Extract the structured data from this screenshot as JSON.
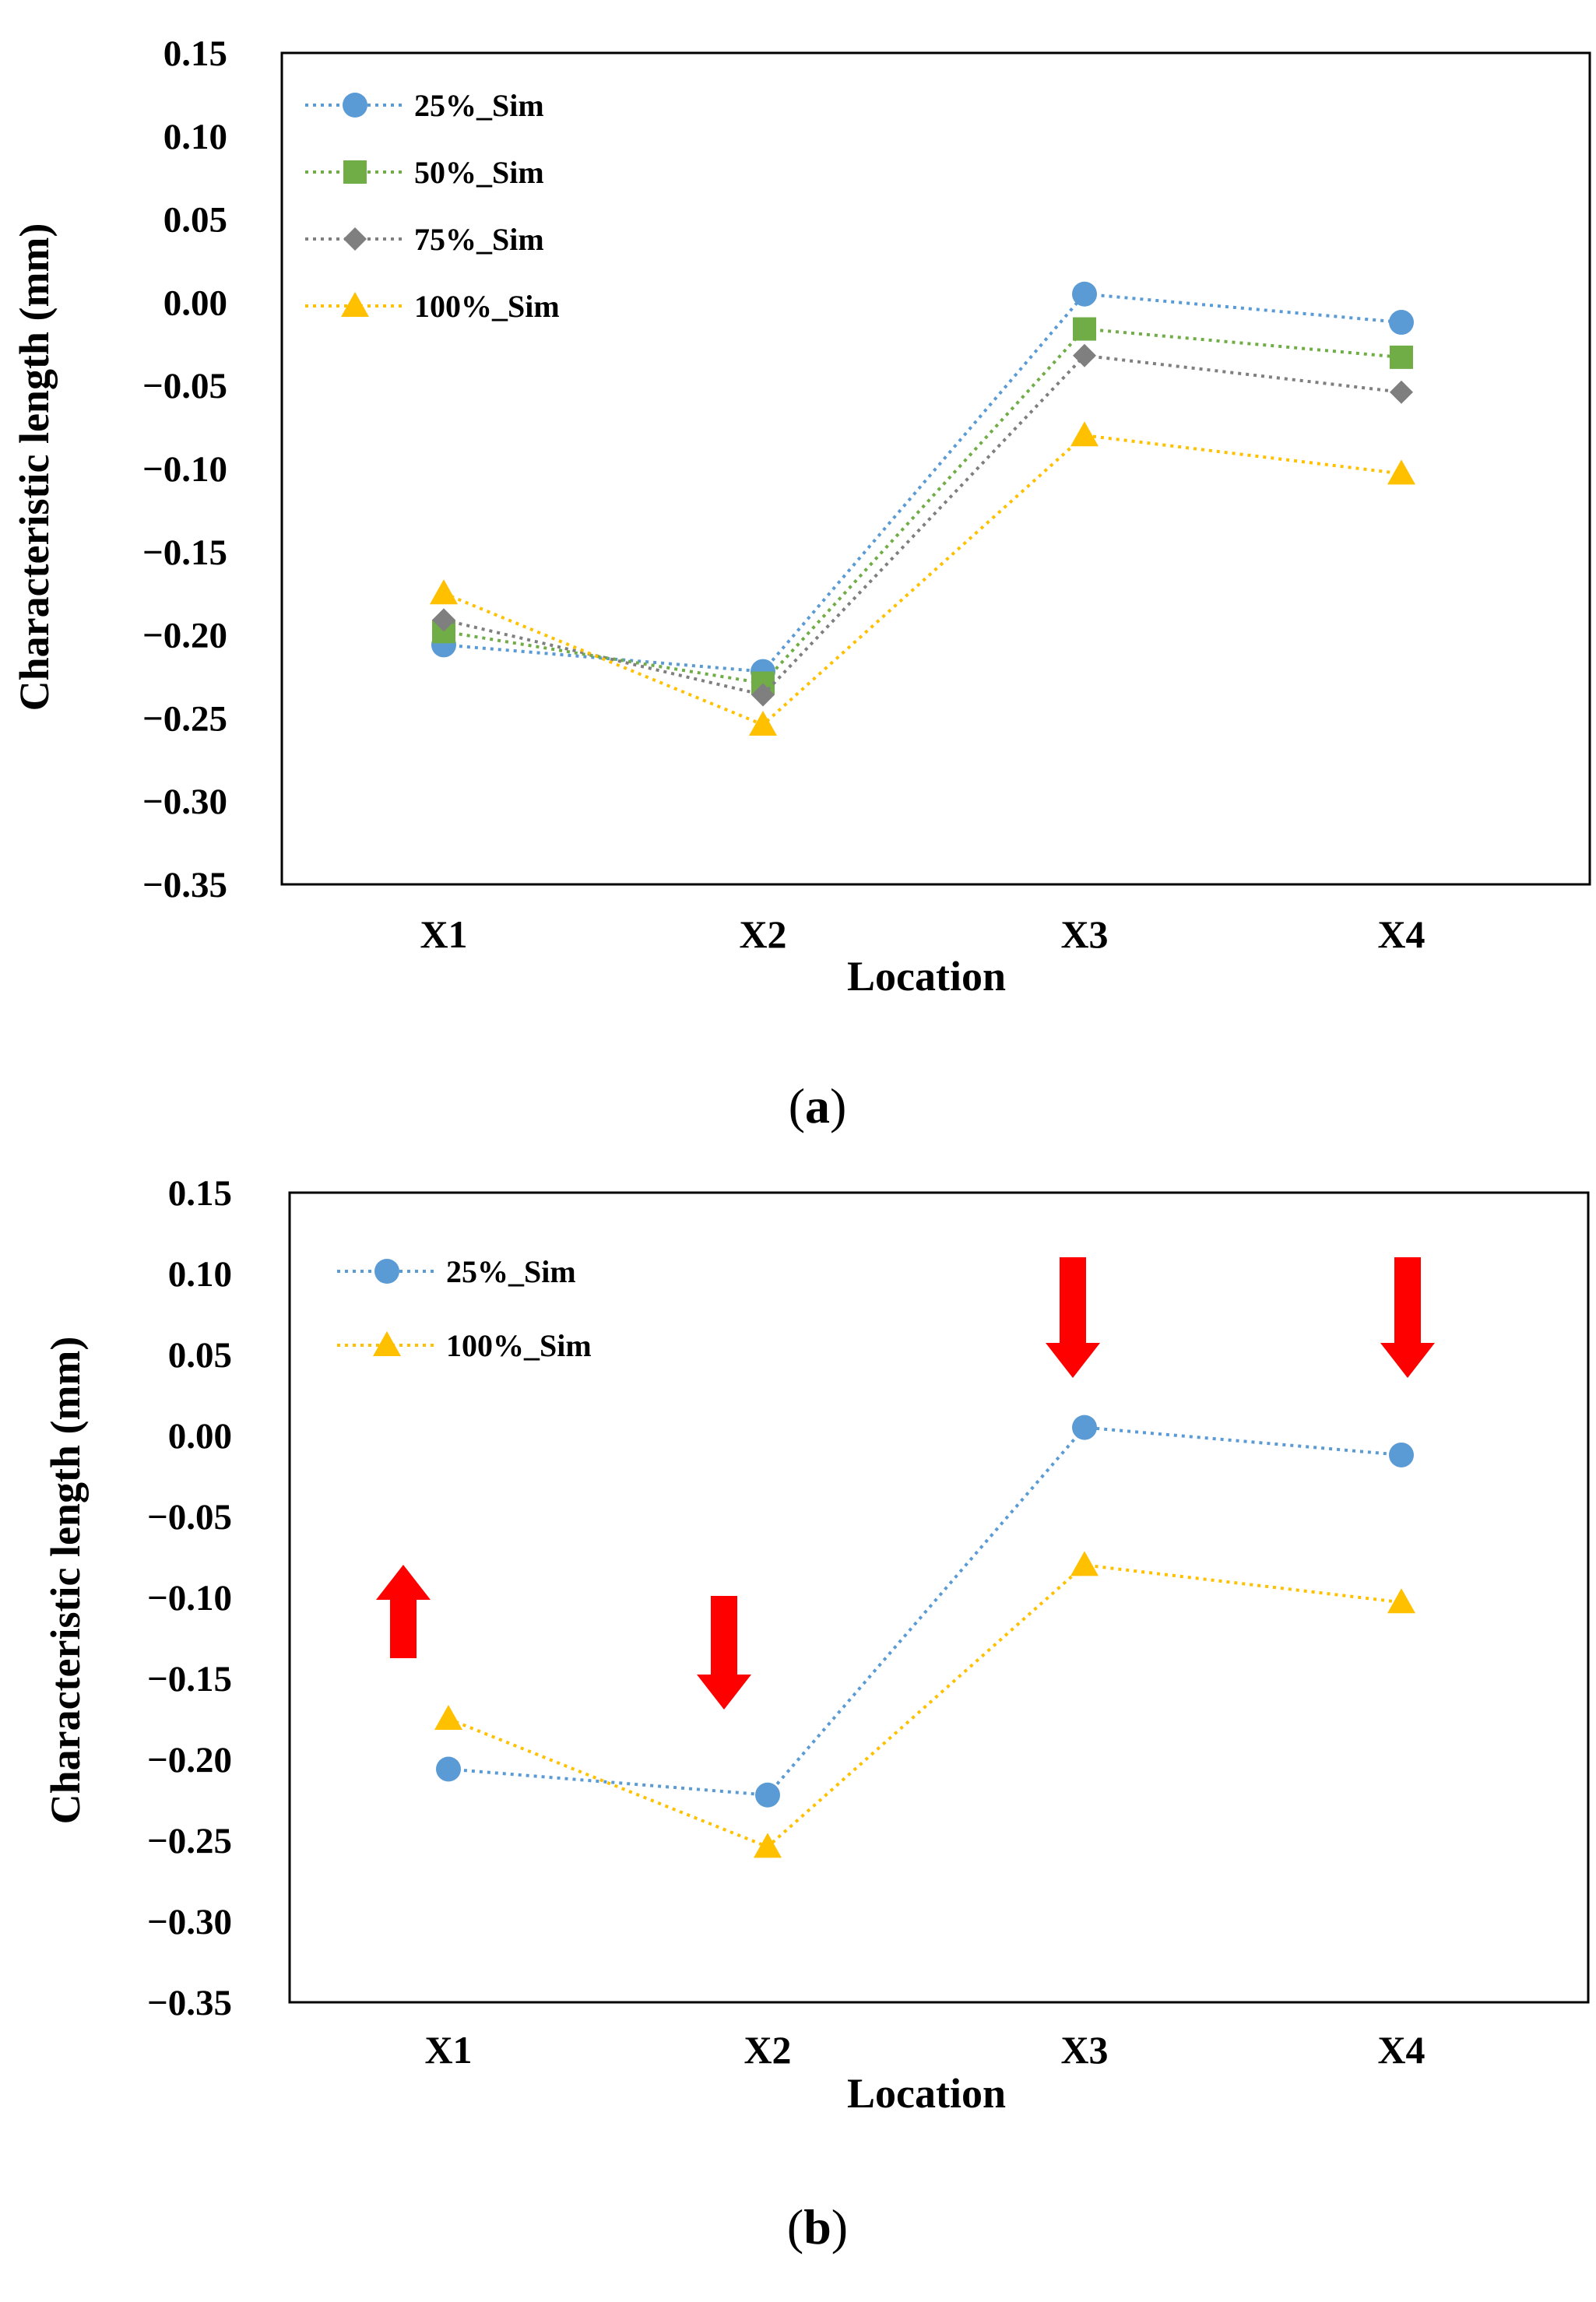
{
  "chart_data": [
    {
      "type": "line",
      "panel_label": "a",
      "caption_open": "(",
      "caption_close": ")",
      "categories": [
        "X1",
        "X2",
        "X3",
        "X4"
      ],
      "xlabel": "Location",
      "ylabel": "Characteristic length (mm)",
      "ylim": [
        -0.35,
        0.15
      ],
      "ytick_labels": [
        "0.15",
        "0.10",
        "0.05",
        "0.00",
        "−0.05",
        "−0.10",
        "−0.15",
        "−0.20",
        "−0.25",
        "−0.30",
        "−0.35"
      ],
      "legend_position": "top-left",
      "grid": false,
      "series": [
        {
          "name": "25%_Sim",
          "values": [
            -0.206,
            -0.222,
            0.005,
            -0.012
          ],
          "color": "#5B9BD5",
          "marker": "circle"
        },
        {
          "name": "50%_Sim",
          "values": [
            -0.198,
            -0.229,
            -0.016,
            -0.033
          ],
          "color": "#70AD47",
          "marker": "square"
        },
        {
          "name": "75%_Sim",
          "values": [
            -0.191,
            -0.236,
            -0.032,
            -0.054
          ],
          "color": "#7F7F7F",
          "marker": "diamond"
        },
        {
          "name": "100%_Sim",
          "values": [
            -0.175,
            -0.254,
            -0.08,
            -0.103
          ],
          "color": "#FFC000",
          "marker": "triangle"
        }
      ]
    },
    {
      "type": "line",
      "panel_label": "b",
      "caption_open": "(",
      "caption_close": ")",
      "categories": [
        "X1",
        "X2",
        "X3",
        "X4"
      ],
      "xlabel": "Location",
      "ylabel": "Characteristic length (mm)",
      "ylim": [
        -0.35,
        0.15
      ],
      "ytick_labels": [
        "0.15",
        "0.10",
        "0.05",
        "0.00",
        "−0.05",
        "−0.10",
        "−0.15",
        "−0.20",
        "−0.25",
        "−0.30",
        "−0.35"
      ],
      "legend_position": "top-left",
      "grid": false,
      "series": [
        {
          "name": "25%_Sim",
          "values": [
            -0.206,
            -0.222,
            0.005,
            -0.012
          ],
          "color": "#5B9BD5",
          "marker": "circle"
        },
        {
          "name": "100%_Sim",
          "values": [
            -0.175,
            -0.254,
            -0.08,
            -0.103
          ],
          "color": "#FFC000",
          "marker": "triangle"
        }
      ],
      "annotations": [
        {
          "type": "arrow",
          "direction": "up",
          "category": "X1",
          "color": "#FF0000"
        },
        {
          "type": "arrow",
          "direction": "down",
          "category": "X2",
          "color": "#FF0000"
        },
        {
          "type": "arrow",
          "direction": "down",
          "category": "X3",
          "color": "#FF0000"
        },
        {
          "type": "arrow",
          "direction": "down",
          "category": "X4",
          "color": "#FF0000"
        }
      ]
    }
  ]
}
